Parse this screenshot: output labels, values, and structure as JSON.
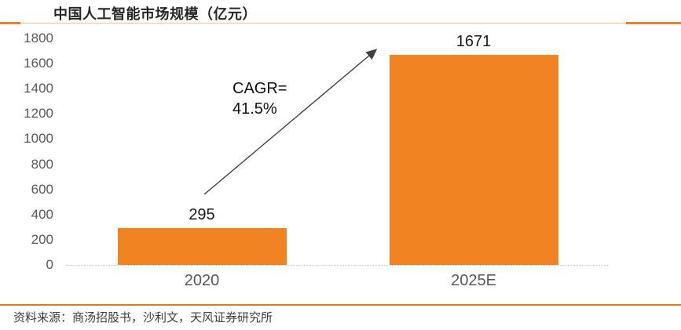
{
  "title": "中国人工智能市场规模（亿元）",
  "source": "资料来源：商汤招股书，沙利文，天风证券研究所",
  "annotation": {
    "line1": "CAGR=",
    "line2": "41.5%"
  },
  "colors": {
    "bar": "#F28322",
    "divider_accent": "#ED7D31",
    "divider_thin": "#F8C389",
    "footer_rule": "#E8761F",
    "axis_text": "#595959",
    "value_text": "#1a1a1a",
    "arrow": "#3f3f3f"
  },
  "chart_data": {
    "type": "bar",
    "categories": [
      "2020",
      "2025E"
    ],
    "values": [
      295,
      1671
    ],
    "title": "中国人工智能市场规模（亿元）",
    "xlabel": "",
    "ylabel": "",
    "ylim": [
      0,
      1800
    ],
    "yticks": [
      0,
      200,
      400,
      600,
      800,
      1000,
      1200,
      1400,
      1600,
      1800
    ],
    "grid": false,
    "legend": false,
    "bar_color": "#F28322",
    "annotations": [
      {
        "text": "CAGR= 41.5%",
        "type": "arrow",
        "from_category": "2020",
        "to_category": "2025E"
      }
    ]
  }
}
